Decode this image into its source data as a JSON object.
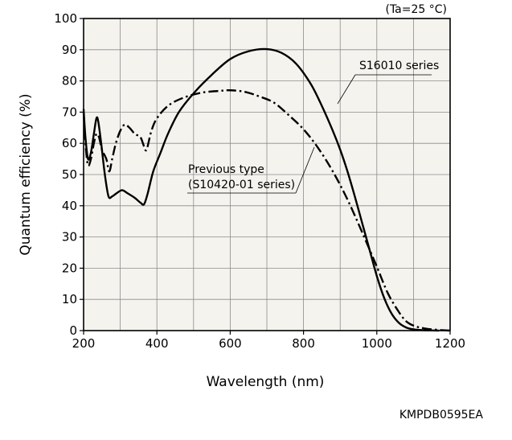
{
  "chart_data": {
    "type": "line",
    "condition_note": "(Ta=25 °C)",
    "xlabel": "Wavelength (nm)",
    "ylabel": "Quantum efficiency (%)",
    "xlim": [
      200,
      1200
    ],
    "ylim": [
      0,
      100
    ],
    "xticks": [
      200,
      400,
      600,
      800,
      1000,
      1200
    ],
    "yticks": [
      0,
      10,
      20,
      30,
      40,
      50,
      60,
      70,
      80,
      90,
      100
    ],
    "x_grid_step": 100,
    "y_grid_step": 10,
    "grid": true,
    "plot_background": "#f5f3ee",
    "document_code": "KMPDB0595EA",
    "series": [
      {
        "name": "S16010 series",
        "line_style": "solid",
        "color": "#000000",
        "points": [
          [
            200,
            71
          ],
          [
            205,
            62
          ],
          [
            212,
            55
          ],
          [
            220,
            57
          ],
          [
            228,
            63
          ],
          [
            235,
            68
          ],
          [
            240,
            67
          ],
          [
            248,
            60
          ],
          [
            258,
            50
          ],
          [
            268,
            43
          ],
          [
            278,
            43
          ],
          [
            290,
            44
          ],
          [
            305,
            45
          ],
          [
            320,
            44
          ],
          [
            340,
            42.5
          ],
          [
            355,
            41
          ],
          [
            365,
            40.5
          ],
          [
            375,
            44
          ],
          [
            390,
            51
          ],
          [
            410,
            57
          ],
          [
            430,
            63
          ],
          [
            460,
            70
          ],
          [
            500,
            76
          ],
          [
            550,
            82
          ],
          [
            600,
            87
          ],
          [
            650,
            89.5
          ],
          [
            700,
            90.2
          ],
          [
            740,
            89
          ],
          [
            780,
            85.5
          ],
          [
            820,
            79
          ],
          [
            850,
            72
          ],
          [
            880,
            64
          ],
          [
            900,
            58
          ],
          [
            920,
            51
          ],
          [
            940,
            43
          ],
          [
            960,
            34.5
          ],
          [
            980,
            26
          ],
          [
            1000,
            17.5
          ],
          [
            1020,
            10.5
          ],
          [
            1040,
            5.5
          ],
          [
            1060,
            2.5
          ],
          [
            1080,
            1
          ],
          [
            1100,
            0.4
          ],
          [
            1130,
            0.1
          ],
          [
            1170,
            0
          ]
        ]
      },
      {
        "name": "Previous type (S10420-01 series)",
        "line_style": "dash-dot",
        "color": "#000000",
        "points": [
          [
            200,
            70
          ],
          [
            205,
            60
          ],
          [
            212,
            53
          ],
          [
            220,
            55
          ],
          [
            228,
            60
          ],
          [
            235,
            63
          ],
          [
            242,
            62
          ],
          [
            250,
            58
          ],
          [
            262,
            55
          ],
          [
            270,
            51
          ],
          [
            278,
            55
          ],
          [
            288,
            60
          ],
          [
            300,
            64
          ],
          [
            312,
            66
          ],
          [
            325,
            65
          ],
          [
            340,
            63
          ],
          [
            355,
            62
          ],
          [
            365,
            59
          ],
          [
            372,
            58
          ],
          [
            385,
            64
          ],
          [
            400,
            68
          ],
          [
            430,
            72
          ],
          [
            470,
            74.5
          ],
          [
            520,
            76.2
          ],
          [
            570,
            76.8
          ],
          [
            600,
            77
          ],
          [
            640,
            76.5
          ],
          [
            680,
            75
          ],
          [
            720,
            73
          ],
          [
            760,
            69
          ],
          [
            800,
            64.5
          ],
          [
            840,
            58.5
          ],
          [
            880,
            51
          ],
          [
            920,
            42
          ],
          [
            960,
            31.5
          ],
          [
            1000,
            20.5
          ],
          [
            1030,
            12
          ],
          [
            1060,
            6
          ],
          [
            1080,
            3
          ],
          [
            1100,
            1.6
          ],
          [
            1130,
            0.7
          ],
          [
            1170,
            0.2
          ],
          [
            1200,
            0
          ]
        ]
      }
    ],
    "annotations": [
      {
        "lines": [
          "S16010 series"
        ],
        "series": 0
      },
      {
        "lines": [
          "Previous type",
          "(S10420-01 series)"
        ],
        "series": 1
      }
    ]
  }
}
